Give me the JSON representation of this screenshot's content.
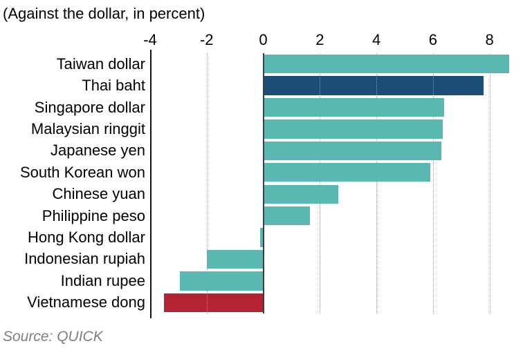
{
  "title": "(Against the dollar, in percent)",
  "source": "Source: QUICK",
  "colors": {
    "teal": "#59b9b2",
    "navy": "#1c4d77",
    "red": "#b52231",
    "gridline": "#999999",
    "zero_line": "#3d3d3d",
    "axis_line": "#111111",
    "text": "#000000",
    "source_text": "#7f7f7f"
  },
  "chart_data": {
    "type": "bar",
    "orientation": "horizontal",
    "title": "(Against the dollar, in percent)",
    "xlabel": "",
    "ylabel": "",
    "categories": [
      "Taiwan dollar",
      "Thai baht",
      "Singapore dollar",
      "Malaysian ringgit",
      "Japanese yen",
      "South Korean won",
      "Chinese yuan",
      "Philippine peso",
      "Hong Kong dollar",
      "Indonesian rupiah",
      "Indian rupee",
      "Vietnamese dong"
    ],
    "values": [
      8.7,
      7.8,
      6.4,
      6.35,
      6.3,
      5.9,
      2.65,
      1.65,
      -0.12,
      -2.0,
      -2.95,
      -3.5
    ],
    "bar_colors": [
      "teal",
      "navy",
      "teal",
      "teal",
      "teal",
      "teal",
      "teal",
      "teal",
      "teal",
      "teal",
      "teal",
      "red"
    ],
    "xlim": [
      -4,
      9.5
    ],
    "xticks": [
      -4,
      -2,
      0,
      2,
      4,
      6,
      8
    ],
    "grid": "dotted vertical gridlines at ticks, drawn over bars",
    "legend": "none",
    "source": "Source: QUICK"
  }
}
